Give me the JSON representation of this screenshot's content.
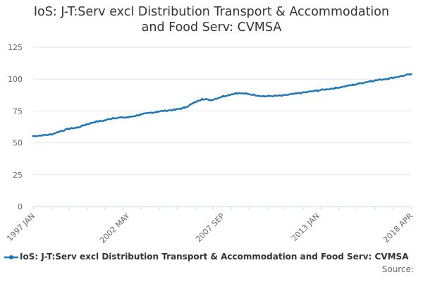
{
  "chart_data": {
    "type": "line",
    "title_line1": "IoS: J-T:Serv excl Distribution Transport & Accommodation",
    "title_line2": "and Food Serv: CVMSA",
    "xlabel": "",
    "ylabel": "",
    "ylim": [
      0,
      125
    ],
    "yticks": [
      "0",
      "25",
      "50",
      "75",
      "100",
      "125"
    ],
    "xticks": [
      "1997 JAN",
      "2002 MAY",
      "2007 SEP",
      "2013 JAN",
      "2018 APR"
    ],
    "grid": true,
    "legend_position": "bottom-left",
    "series": [
      {
        "name": "IoS: J-T:Serv excl Distribution Transport & Accommodation and Food Serv: CVMSA",
        "color": "#1f77b4",
        "points": [
          {
            "date": "1997 JAN",
            "value": 55.3
          },
          {
            "date": "1998 JAN",
            "value": 56.5
          },
          {
            "date": "1998 JUL",
            "value": 59.0
          },
          {
            "date": "1999 JAN",
            "value": 61.0
          },
          {
            "date": "1999 JUL",
            "value": 62.0
          },
          {
            "date": "2000 JAN",
            "value": 64.5
          },
          {
            "date": "2000 JUL",
            "value": 66.5
          },
          {
            "date": "2001 JAN",
            "value": 67.5
          },
          {
            "date": "2001 JUL",
            "value": 69.5
          },
          {
            "date": "2002 MAY",
            "value": 70.0
          },
          {
            "date": "2003 JAN",
            "value": 72.0
          },
          {
            "date": "2004 JAN",
            "value": 74.5
          },
          {
            "date": "2005 JAN",
            "value": 76.0
          },
          {
            "date": "2005 JUL",
            "value": 77.5
          },
          {
            "date": "2006 JAN",
            "value": 81.0
          },
          {
            "date": "2006 JUL",
            "value": 84.5
          },
          {
            "date": "2007 JAN",
            "value": 83.5
          },
          {
            "date": "2007 SEP",
            "value": 86.5
          },
          {
            "date": "2008 JUN",
            "value": 89.0
          },
          {
            "date": "2009 JAN",
            "value": 88.5
          },
          {
            "date": "2010 JAN",
            "value": 86.5
          },
          {
            "date": "2011 JAN",
            "value": 87.0
          },
          {
            "date": "2012 JAN",
            "value": 89.0
          },
          {
            "date": "2013 JAN",
            "value": 91.0
          },
          {
            "date": "2014 JAN",
            "value": 93.0
          },
          {
            "date": "2015 JAN",
            "value": 95.5
          },
          {
            "date": "2016 JAN",
            "value": 98.5
          },
          {
            "date": "2017 JAN",
            "value": 100.5
          },
          {
            "date": "2018 APR",
            "value": 103.8
          }
        ]
      }
    ]
  },
  "source_label": "Source:"
}
